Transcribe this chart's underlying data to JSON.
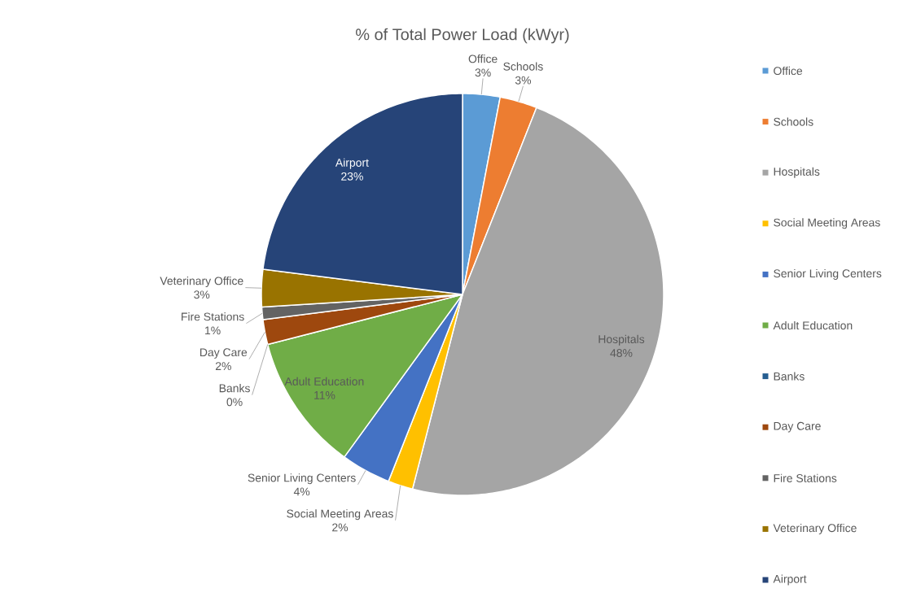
{
  "chart_data": {
    "type": "pie",
    "title": "% of Total Power Load (kWyr)",
    "categories": [
      "Office",
      "Schools",
      "Hospitals",
      "Social Meeting Areas",
      "Senior Living Centers",
      "Adult Education",
      "Banks",
      "Day Care",
      "Fire Stations",
      "Veterinary Office",
      "Airport"
    ],
    "values": [
      3,
      3,
      48,
      2,
      4,
      11,
      0,
      2,
      1,
      3,
      23
    ],
    "value_labels": [
      "3%",
      "3%",
      "48%",
      "2%",
      "4%",
      "11%",
      "0%",
      "2%",
      "1%",
      "3%",
      "23%"
    ],
    "colors": [
      "#5b9bd5",
      "#ed7d31",
      "#a5a5a5",
      "#ffc000",
      "#4472c4",
      "#70ad47",
      "#255e91",
      "#9e480e",
      "#636363",
      "#997300",
      "#264478"
    ],
    "legend": "right"
  }
}
